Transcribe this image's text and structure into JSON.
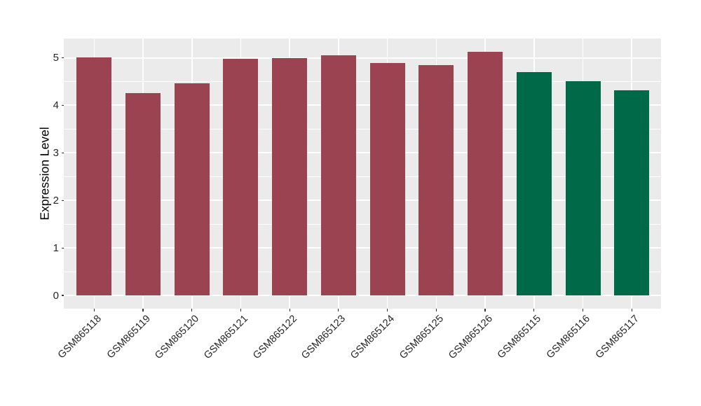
{
  "chart_data": {
    "type": "bar",
    "title": "",
    "xlabel": "",
    "ylabel": "Expression Level",
    "categories": [
      "GSM865118",
      "GSM865119",
      "GSM865120",
      "GSM865121",
      "GSM865122",
      "GSM865123",
      "GSM865124",
      "GSM865125",
      "GSM865126",
      "GSM865115",
      "GSM865116",
      "GSM865117"
    ],
    "values": [
      5.01,
      4.26,
      4.47,
      4.98,
      5.0,
      5.06,
      4.89,
      4.84,
      5.12,
      4.7,
      4.51,
      4.32
    ],
    "bar_groups": [
      "maroon",
      "maroon",
      "maroon",
      "maroon",
      "maroon",
      "maroon",
      "maroon",
      "maroon",
      "maroon",
      "green",
      "green",
      "green"
    ],
    "group_colors": {
      "maroon": "#9C4352",
      "green": "#006A48"
    },
    "y_ticks": [
      0,
      1,
      2,
      3,
      4,
      5
    ],
    "y_minor_ticks": [
      0.5,
      1.5,
      2.5,
      3.5,
      4.5
    ],
    "ylim": [
      -0.27,
      5.4
    ],
    "grid": "on",
    "legend": "none",
    "colors": {
      "panel_background": "#EBEBEB",
      "gridline": "#FFFFFF",
      "axis_text": "#262626",
      "tick_mark": "#333333"
    }
  }
}
